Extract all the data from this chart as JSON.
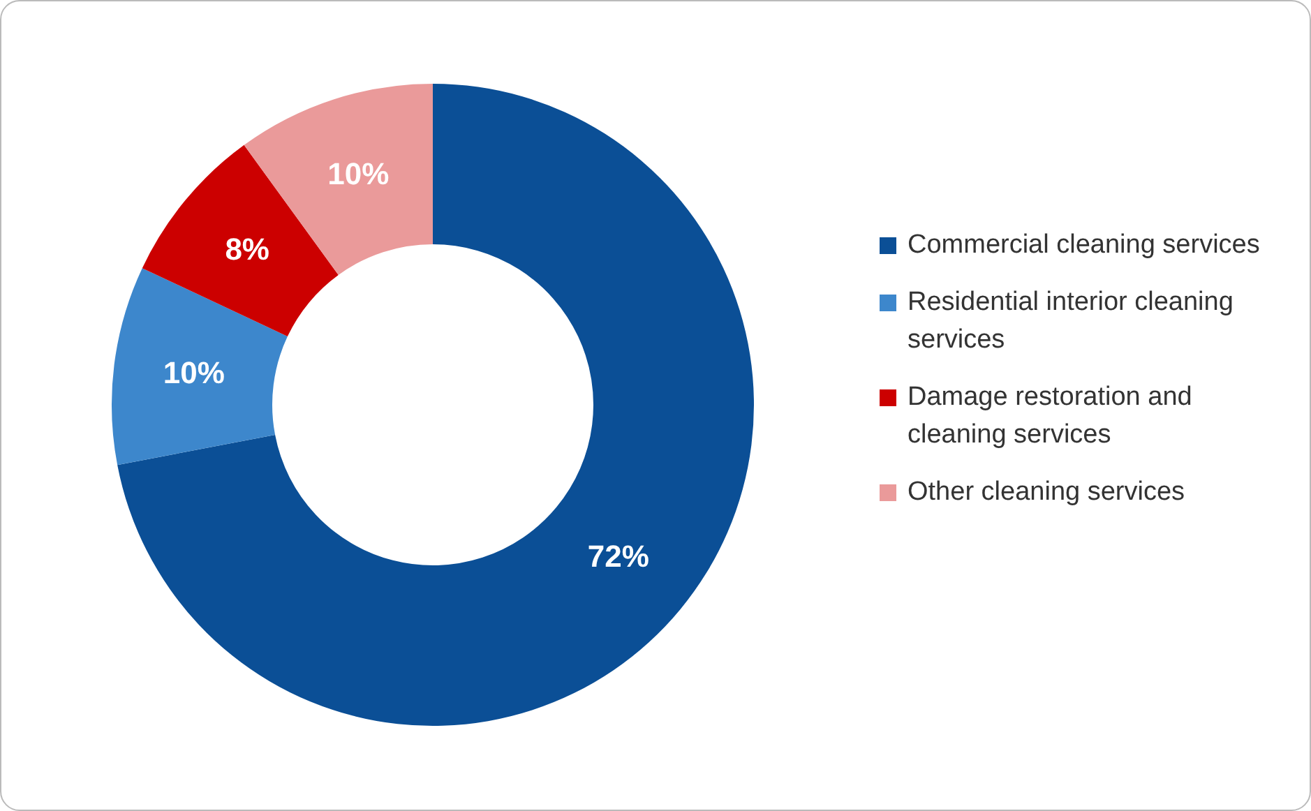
{
  "chart_data": {
    "type": "donut",
    "categories": [
      "Commercial cleaning services",
      "Residential interior cleaning services",
      "Damage restoration and cleaning services",
      "Other cleaning services"
    ],
    "values": [
      72,
      10,
      8,
      10
    ],
    "colors": [
      "#0b4f96",
      "#3d87cc",
      "#cc0000",
      "#ea9a9a"
    ],
    "value_labels": [
      "72%",
      "10%",
      "8%",
      "10%"
    ],
    "legend": "right"
  }
}
